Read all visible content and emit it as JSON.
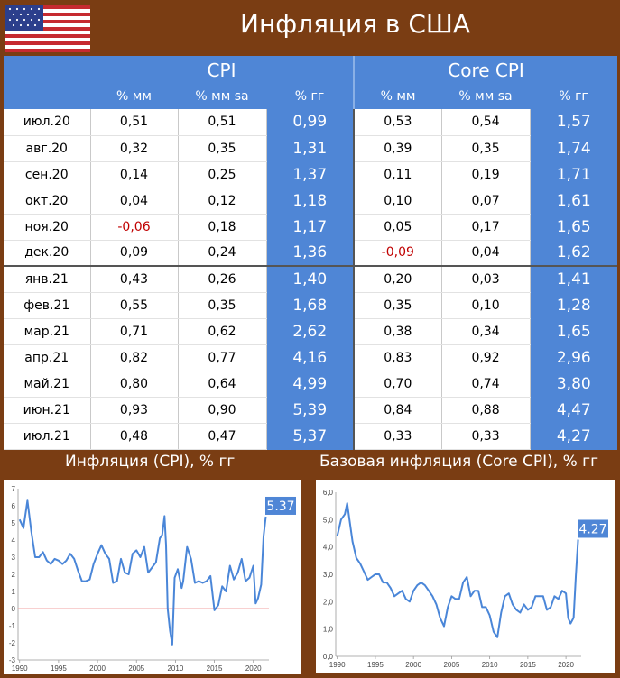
{
  "header": {
    "title": "Инфляция в США"
  },
  "table": {
    "groups": [
      "CPI",
      "Core CPI"
    ],
    "subheaders": [
      "% мм",
      "% мм sa",
      "% гг",
      "% мм",
      "% мм sa",
      "% гг"
    ],
    "rows": [
      {
        "label": "июл.20",
        "cpi_mm": "0,51",
        "cpi_mm_sa": "0,51",
        "cpi_yy": "0,99",
        "core_mm": "0,53",
        "core_mm_sa": "0,54",
        "core_yy": "1,57"
      },
      {
        "label": "авг.20",
        "cpi_mm": "0,32",
        "cpi_mm_sa": "0,35",
        "cpi_yy": "1,31",
        "core_mm": "0,39",
        "core_mm_sa": "0,35",
        "core_yy": "1,74"
      },
      {
        "label": "сен.20",
        "cpi_mm": "0,14",
        "cpi_mm_sa": "0,25",
        "cpi_yy": "1,37",
        "core_mm": "0,11",
        "core_mm_sa": "0,19",
        "core_yy": "1,71"
      },
      {
        "label": "окт.20",
        "cpi_mm": "0,04",
        "cpi_mm_sa": "0,12",
        "cpi_yy": "1,18",
        "core_mm": "0,10",
        "core_mm_sa": "0,07",
        "core_yy": "1,61"
      },
      {
        "label": "ноя.20",
        "cpi_mm": "-0,06",
        "cpi_mm_sa": "0,18",
        "cpi_yy": "1,17",
        "core_mm": "0,05",
        "core_mm_sa": "0,17",
        "core_yy": "1,65"
      },
      {
        "label": "дек.20",
        "cpi_mm": "0,09",
        "cpi_mm_sa": "0,24",
        "cpi_yy": "1,36",
        "core_mm": "-0,09",
        "core_mm_sa": "0,04",
        "core_yy": "1,62"
      },
      {
        "label": "янв.21",
        "cpi_mm": "0,43",
        "cpi_mm_sa": "0,26",
        "cpi_yy": "1,40",
        "core_mm": "0,20",
        "core_mm_sa": "0,03",
        "core_yy": "1,41"
      },
      {
        "label": "фев.21",
        "cpi_mm": "0,55",
        "cpi_mm_sa": "0,35",
        "cpi_yy": "1,68",
        "core_mm": "0,35",
        "core_mm_sa": "0,10",
        "core_yy": "1,28"
      },
      {
        "label": "мар.21",
        "cpi_mm": "0,71",
        "cpi_mm_sa": "0,62",
        "cpi_yy": "2,62",
        "core_mm": "0,38",
        "core_mm_sa": "0,34",
        "core_yy": "1,65"
      },
      {
        "label": "апр.21",
        "cpi_mm": "0,82",
        "cpi_mm_sa": "0,77",
        "cpi_yy": "4,16",
        "core_mm": "0,83",
        "core_mm_sa": "0,92",
        "core_yy": "2,96"
      },
      {
        "label": "май.21",
        "cpi_mm": "0,80",
        "cpi_mm_sa": "0,64",
        "cpi_yy": "4,99",
        "core_mm": "0,70",
        "core_mm_sa": "0,74",
        "core_yy": "3,80"
      },
      {
        "label": "июн.21",
        "cpi_mm": "0,93",
        "cpi_mm_sa": "0,90",
        "cpi_yy": "5,39",
        "core_mm": "0,84",
        "core_mm_sa": "0,88",
        "core_yy": "4,47"
      },
      {
        "label": "июл.21",
        "cpi_mm": "0,48",
        "cpi_mm_sa": "0,47",
        "cpi_yy": "5,37",
        "core_mm": "0,33",
        "core_mm_sa": "0,33",
        "core_yy": "4,27"
      }
    ]
  },
  "captions": {
    "cpi": "Инфляция (CPI), % гг",
    "core": "Базовая инфляция (Core CPI), % гг"
  },
  "colors": {
    "background": "#7a3d13",
    "accent": "#4f86d6",
    "line": "#4a86d8",
    "negative": "#c00000",
    "zero_line": "#f2a0a0"
  },
  "chart_data": [
    {
      "type": "line",
      "title": "Инфляция (CPI), % гг",
      "x": [
        1990,
        1990.5,
        1991,
        1991.5,
        1992,
        1992.5,
        1993,
        1993.5,
        1994,
        1994.5,
        1995,
        1995.5,
        1996,
        1996.5,
        1997,
        1997.5,
        1998,
        1998.5,
        1999,
        1999.5,
        2000,
        2000.5,
        2001,
        2001.5,
        2002,
        2002.5,
        2003,
        2003.5,
        2004,
        2004.5,
        2005,
        2005.5,
        2006,
        2006.5,
        2007,
        2007.5,
        2008,
        2008.3,
        2008.6,
        2008.8,
        2009,
        2009.3,
        2009.6,
        2009.9,
        2010.3,
        2010.8,
        2011,
        2011.5,
        2012,
        2012.5,
        2013,
        2013.5,
        2014,
        2014.5,
        2015,
        2015.5,
        2016,
        2016.5,
        2017,
        2017.5,
        2018,
        2018.5,
        2019,
        2019.5,
        2020,
        2020.3,
        2020.6,
        2021,
        2021.3,
        2021.6
      ],
      "values": [
        5.2,
        4.7,
        6.3,
        4.5,
        3.0,
        3.0,
        3.3,
        2.8,
        2.6,
        2.9,
        2.8,
        2.6,
        2.8,
        3.2,
        2.9,
        2.2,
        1.6,
        1.6,
        1.7,
        2.6,
        3.2,
        3.7,
        3.2,
        2.9,
        1.5,
        1.6,
        2.9,
        2.1,
        2.0,
        3.2,
        3.4,
        3.0,
        3.6,
        2.1,
        2.4,
        2.7,
        4.1,
        4.3,
        5.4,
        3.7,
        0.0,
        -1.3,
        -2.1,
        1.8,
        2.3,
        1.2,
        1.6,
        3.6,
        2.9,
        1.5,
        1.6,
        1.5,
        1.6,
        1.9,
        -0.1,
        0.2,
        1.3,
        1.0,
        2.5,
        1.7,
        2.1,
        2.9,
        1.6,
        1.8,
        2.5,
        0.3,
        0.6,
        1.4,
        4.2,
        5.37
      ],
      "xticks": [
        "1990",
        "1995",
        "2000",
        "2005",
        "2010",
        "2015",
        "2020"
      ],
      "yticks": [
        "-3",
        "-2",
        "-1",
        "0",
        "1",
        "2",
        "3",
        "4",
        "5",
        "6",
        "7"
      ],
      "ylim": [
        -3,
        7
      ],
      "xlim": [
        1989.8,
        2022
      ],
      "last_label": "5.37",
      "zero_line": true
    },
    {
      "type": "line",
      "title": "Базовая инфляция (Core CPI), % гг",
      "x": [
        1990,
        1990.5,
        1991,
        1991.3,
        1991.6,
        1992,
        1992.5,
        1993,
        1993.5,
        1994,
        1994.5,
        1995,
        1995.5,
        1996,
        1996.5,
        1997,
        1997.5,
        1998,
        1998.5,
        1999,
        1999.5,
        2000,
        2000.5,
        2001,
        2001.5,
        2002,
        2002.5,
        2003,
        2003.5,
        2004,
        2004.5,
        2005,
        2005.5,
        2006,
        2006.5,
        2007,
        2007.5,
        2008,
        2008.5,
        2009,
        2009.5,
        2010,
        2010.5,
        2011,
        2011.5,
        2012,
        2012.5,
        2013,
        2013.5,
        2014,
        2014.5,
        2015,
        2015.5,
        2016,
        2016.5,
        2017,
        2017.5,
        2018,
        2018.5,
        2019,
        2019.5,
        2020,
        2020.3,
        2020.6,
        2021,
        2021.3,
        2021.6
      ],
      "values": [
        4.4,
        5.0,
        5.2,
        5.6,
        5.0,
        4.2,
        3.6,
        3.4,
        3.1,
        2.8,
        2.9,
        3.0,
        3.0,
        2.7,
        2.7,
        2.5,
        2.2,
        2.3,
        2.4,
        2.1,
        2.0,
        2.4,
        2.6,
        2.7,
        2.6,
        2.4,
        2.2,
        1.9,
        1.4,
        1.1,
        1.8,
        2.2,
        2.1,
        2.1,
        2.7,
        2.9,
        2.2,
        2.4,
        2.4,
        1.8,
        1.8,
        1.5,
        0.9,
        0.7,
        1.6,
        2.2,
        2.3,
        1.9,
        1.7,
        1.6,
        1.9,
        1.7,
        1.8,
        2.2,
        2.2,
        2.2,
        1.7,
        1.8,
        2.2,
        2.1,
        2.4,
        2.3,
        1.4,
        1.2,
        1.41,
        2.96,
        4.27
      ],
      "xticks": [
        "1990",
        "1995",
        "2000",
        "2005",
        "2010",
        "2015",
        "2020"
      ],
      "yticks": [
        "0,0",
        "1,0",
        "2,0",
        "3,0",
        "4,0",
        "5,0",
        "6,0"
      ],
      "ylim": [
        0,
        6
      ],
      "xlim": [
        1989.8,
        2022
      ],
      "last_label": "4.27"
    }
  ]
}
